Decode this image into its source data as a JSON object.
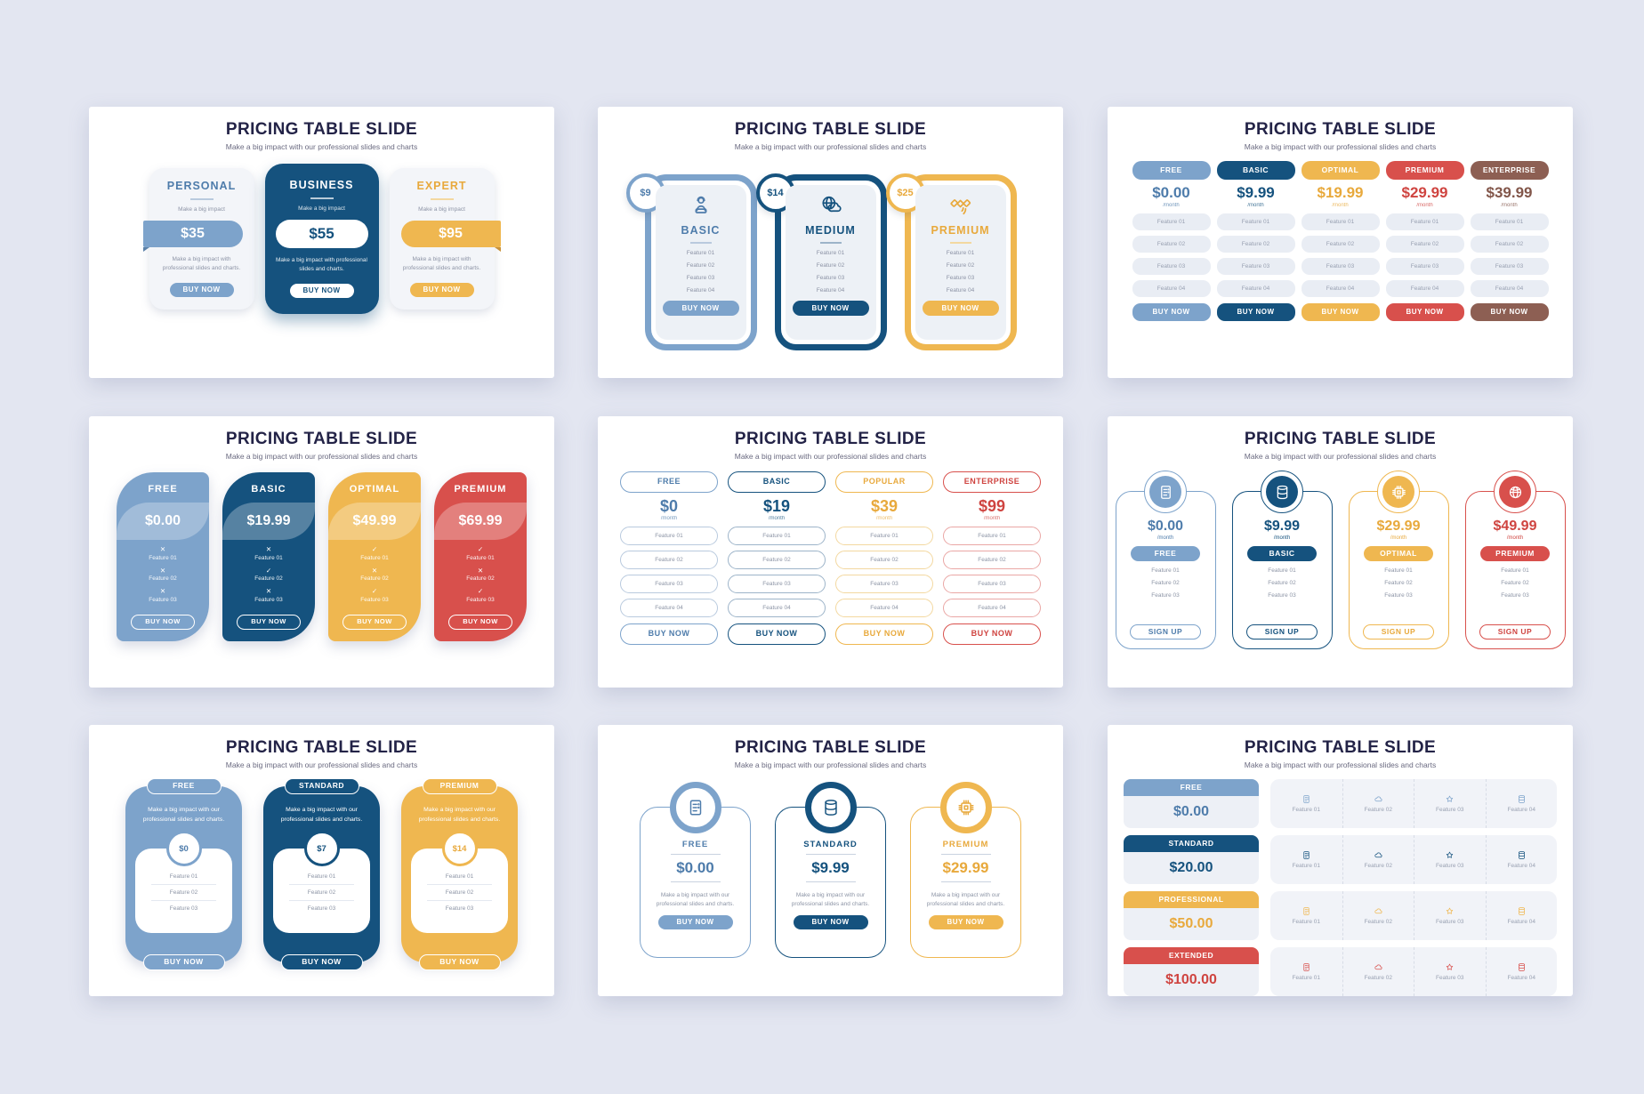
{
  "header": {
    "title": "PRICING TABLE SLIDE",
    "subtitle": "Make a big impact with our professional slides and charts"
  },
  "themes": {
    "light_blue": {
      "main": "#7da3cb",
      "strong": "#4e7cab",
      "dark": "#5c82a9",
      "soft": "#b9cade"
    },
    "dark_blue": {
      "main": "#15527e",
      "strong": "#15527e",
      "dark": "#0e3c5e",
      "soft": "#9db4c9"
    },
    "yellow": {
      "main": "#efb750",
      "strong": "#e8a93c",
      "dark": "#c8923a",
      "soft": "#f3d8a0"
    },
    "red": {
      "main": "#d8504c",
      "strong": "#cf4440",
      "dark": "#b13c3a",
      "soft": "#eaa7a5"
    },
    "brown": {
      "main": "#8d5f53",
      "strong": "#82564a",
      "dark": "#6f4a40",
      "soft": "#c7a89f"
    }
  },
  "slide1": {
    "cards": [
      {
        "name": "PERSONAL",
        "tagline": "Make a big impact",
        "price": "$35",
        "desc": "Make a big impact with professional slides and charts.",
        "cta": "BUY NOW",
        "theme": "light_blue",
        "variant": "light",
        "ribbon": "left"
      },
      {
        "name": "BUSINESS",
        "tagline": "Make a big impact",
        "price": "$55",
        "desc": "Make a big impact with professional slides and charts.",
        "cta": "BUY NOW",
        "theme": "dark_blue",
        "variant": "solid",
        "ribbon": "none"
      },
      {
        "name": "EXPERT",
        "tagline": "Make a big impact",
        "price": "$95",
        "desc": "Make a big impact with professional slides and charts.",
        "cta": "BUY NOW",
        "theme": "yellow",
        "variant": "light",
        "ribbon": "right"
      }
    ]
  },
  "slide2": {
    "cards": [
      {
        "badge": "$9",
        "name": "BASIC",
        "icon": "support-person",
        "features": [
          "Feature 01",
          "Feature 02",
          "Feature 03",
          "Feature 04"
        ],
        "cta": "BUY NOW",
        "theme": "light_blue"
      },
      {
        "badge": "$14",
        "name": "MEDIUM",
        "icon": "globe-cloud",
        "features": [
          "Feature 01",
          "Feature 02",
          "Feature 03",
          "Feature 04"
        ],
        "cta": "BUY NOW",
        "theme": "dark_blue"
      },
      {
        "badge": "$25",
        "name": "PREMIUM",
        "icon": "satellite",
        "features": [
          "Feature 01",
          "Feature 02",
          "Feature 03",
          "Feature 04"
        ],
        "cta": "BUY NOW",
        "theme": "yellow"
      }
    ]
  },
  "slide3": {
    "columns": [
      {
        "name": "FREE",
        "price": "$0.00",
        "per": "/month",
        "theme": "light_blue",
        "features": [
          "Feature 01",
          "Feature 02",
          "Feature 03",
          "Feature 04"
        ],
        "cta": "BUY NOW"
      },
      {
        "name": "BASIC",
        "price": "$9.99",
        "per": "/month",
        "theme": "dark_blue",
        "features": [
          "Feature 01",
          "Feature 02",
          "Feature 03",
          "Feature 04"
        ],
        "cta": "BUY NOW"
      },
      {
        "name": "OPTIMAL",
        "price": "$19.99",
        "per": "/month",
        "theme": "yellow",
        "features": [
          "Feature 01",
          "Feature 02",
          "Feature 03",
          "Feature 04"
        ],
        "cta": "BUY NOW"
      },
      {
        "name": "PREMIUM",
        "price": "$29.99",
        "per": "/month",
        "theme": "red",
        "features": [
          "Feature 01",
          "Feature 02",
          "Feature 03",
          "Feature 04"
        ],
        "cta": "BUY NOW"
      },
      {
        "name": "ENTERPRISE",
        "price": "$39.99",
        "per": "/month",
        "theme": "brown",
        "features": [
          "Feature 01",
          "Feature 02",
          "Feature 03",
          "Feature 04"
        ],
        "cta": "BUY NOW"
      }
    ]
  },
  "slide4": {
    "cards": [
      {
        "name": "FREE",
        "price": "$0.00",
        "theme": "light_blue",
        "features": [
          {
            "label": "Feature 01",
            "mark": "x"
          },
          {
            "label": "Feature 02",
            "mark": "x"
          },
          {
            "label": "Feature 03",
            "mark": "x"
          }
        ],
        "cta": "BUY NOW"
      },
      {
        "name": "BASIC",
        "price": "$19.99",
        "theme": "dark_blue",
        "features": [
          {
            "label": "Feature 01",
            "mark": "x"
          },
          {
            "label": "Feature 02",
            "mark": "check"
          },
          {
            "label": "Feature 03",
            "mark": "x"
          }
        ],
        "cta": "BUY NOW"
      },
      {
        "name": "OPTIMAL",
        "price": "$49.99",
        "theme": "yellow",
        "features": [
          {
            "label": "Feature 01",
            "mark": "check"
          },
          {
            "label": "Feature 02",
            "mark": "x"
          },
          {
            "label": "Feature 03",
            "mark": "check"
          }
        ],
        "cta": "BUY NOW"
      },
      {
        "name": "PREMIUM",
        "price": "$69.99",
        "theme": "red",
        "features": [
          {
            "label": "Feature 01",
            "mark": "check"
          },
          {
            "label": "Feature 02",
            "mark": "x"
          },
          {
            "label": "Feature 03",
            "mark": "check"
          }
        ],
        "cta": "BUY NOW"
      }
    ]
  },
  "slide5": {
    "columns": [
      {
        "name": "FREE",
        "price": "$0",
        "per": "/month",
        "theme": "light_blue",
        "features": [
          "Feature 01",
          "Feature 02",
          "Feature 03",
          "Feature 04"
        ],
        "cta": "BUY NOW"
      },
      {
        "name": "BASIC",
        "price": "$19",
        "per": "/month",
        "theme": "dark_blue",
        "features": [
          "Feature 01",
          "Feature 02",
          "Feature 03",
          "Feature 04"
        ],
        "cta": "BUY NOW"
      },
      {
        "name": "POPULAR",
        "price": "$39",
        "per": "/month",
        "theme": "yellow",
        "features": [
          "Feature 01",
          "Feature 02",
          "Feature 03",
          "Feature 04"
        ],
        "cta": "BUY NOW"
      },
      {
        "name": "ENTERPRISE",
        "price": "$99",
        "per": "/month",
        "theme": "red",
        "features": [
          "Feature 01",
          "Feature 02",
          "Feature 03",
          "Feature 04"
        ],
        "cta": "BUY NOW"
      }
    ]
  },
  "slide6": {
    "cards": [
      {
        "icon": "server",
        "price": "$0.00",
        "per": "/month",
        "badge": "FREE",
        "features": [
          "Feature 01",
          "Feature 02",
          "Feature 03"
        ],
        "cta": "SIGN UP",
        "theme": "light_blue"
      },
      {
        "icon": "database",
        "price": "$9.99",
        "per": "/month",
        "badge": "BASIC",
        "features": [
          "Feature 01",
          "Feature 02",
          "Feature 03"
        ],
        "cta": "SIGN UP",
        "theme": "dark_blue"
      },
      {
        "icon": "chip",
        "price": "$29.99",
        "per": "/month",
        "badge": "OPTIMAL",
        "features": [
          "Feature 01",
          "Feature 02",
          "Feature 03"
        ],
        "cta": "SIGN UP",
        "theme": "yellow"
      },
      {
        "icon": "globe",
        "price": "$49.99",
        "per": "/month",
        "badge": "PREMIUM",
        "features": [
          "Feature 01",
          "Feature 02",
          "Feature 03"
        ],
        "cta": "SIGN UP",
        "theme": "red"
      }
    ]
  },
  "slide7": {
    "cards": [
      {
        "badge": "FREE",
        "desc": "Make a big impact with our professional slides and charts.",
        "price": "$0",
        "features": [
          "Feature 01",
          "Feature 02",
          "Feature 03"
        ],
        "cta": "BUY NOW",
        "theme": "light_blue"
      },
      {
        "badge": "STANDARD",
        "desc": "Make a big impact with our professional slides and charts.",
        "price": "$7",
        "features": [
          "Feature 01",
          "Feature 02",
          "Feature 03"
        ],
        "cta": "BUY NOW",
        "theme": "dark_blue"
      },
      {
        "badge": "PREMIUM",
        "desc": "Make a big impact with our professional slides and charts.",
        "price": "$14",
        "features": [
          "Feature 01",
          "Feature 02",
          "Feature 03"
        ],
        "cta": "BUY NOW",
        "theme": "yellow"
      }
    ]
  },
  "slide8": {
    "cards": [
      {
        "icon": "server",
        "name": "FREE",
        "price": "$0.00",
        "desc": "Make a big impact with our professional slides and charts.",
        "cta": "BUY NOW",
        "theme": "light_blue"
      },
      {
        "icon": "database",
        "name": "STANDARD",
        "price": "$9.99",
        "desc": "Make a big impact with our professional slides and charts.",
        "cta": "BUY NOW",
        "theme": "dark_blue"
      },
      {
        "icon": "chip",
        "name": "PREMIUM",
        "price": "$29.99",
        "desc": "Make a big impact with our professional slides and charts.",
        "cta": "BUY NOW",
        "theme": "yellow"
      }
    ]
  },
  "slide9": {
    "rows": [
      {
        "name": "FREE",
        "price": "$0.00",
        "theme": "light_blue",
        "features": [
          {
            "icon": "server",
            "label": "Feature 01"
          },
          {
            "icon": "cloud",
            "label": "Feature 02"
          },
          {
            "icon": "star",
            "label": "Feature 03"
          },
          {
            "icon": "database",
            "label": "Feature 04"
          }
        ]
      },
      {
        "name": "STANDARD",
        "price": "$20.00",
        "theme": "dark_blue",
        "features": [
          {
            "icon": "server",
            "label": "Feature 01"
          },
          {
            "icon": "cloud",
            "label": "Feature 02"
          },
          {
            "icon": "star",
            "label": "Feature 03"
          },
          {
            "icon": "database",
            "label": "Feature 04"
          }
        ]
      },
      {
        "name": "PROFESSIONAL",
        "price": "$50.00",
        "theme": "yellow",
        "features": [
          {
            "icon": "server",
            "label": "Feature 01"
          },
          {
            "icon": "cloud",
            "label": "Feature 02"
          },
          {
            "icon": "star",
            "label": "Feature 03"
          },
          {
            "icon": "database",
            "label": "Feature 04"
          }
        ]
      },
      {
        "name": "EXTENDED",
        "price": "$100.00",
        "theme": "red",
        "features": [
          {
            "icon": "server",
            "label": "Feature 01"
          },
          {
            "icon": "cloud",
            "label": "Feature 02"
          },
          {
            "icon": "star",
            "label": "Feature 03"
          },
          {
            "icon": "database",
            "label": "Feature 04"
          }
        ]
      }
    ]
  }
}
